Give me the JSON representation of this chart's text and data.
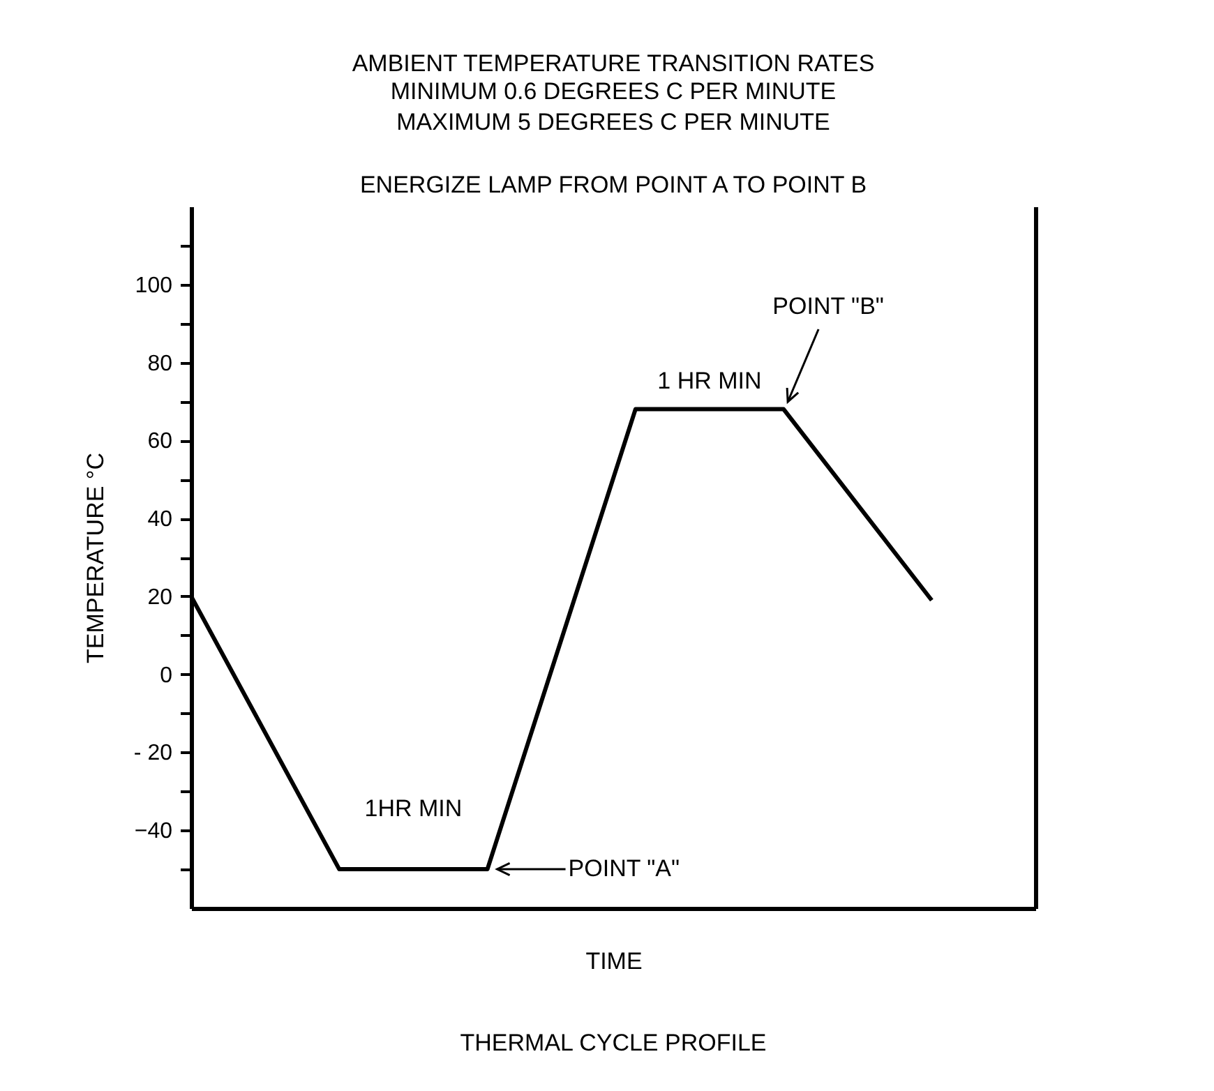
{
  "chart_data": {
    "type": "line",
    "title": "AMBIENT TEMPERATURE TRANSITION RATES",
    "subtitle": "MINIMUM 0.6 DEGREES C PER MINUTE\nMAXIMUM 5 DEGREES C PER MINUTE",
    "xlabel": "TIME",
    "ylabel": "TEMPERATURE °C",
    "categories": [
      null,
      null,
      null,
      null,
      null,
      null
    ],
    "series": [
      {
        "color": "#000000",
        "values": [
          20,
          -50,
          -50,
          68,
          68,
          19
        ]
      }
    ],
    "ylim": [
      -60,
      120
    ],
    "yticks": [
      {
        "value": -50,
        "label": null
      },
      -40,
      {
        "value": -30,
        "label": null
      },
      {
        "value": -20,
        "label": "- 20"
      },
      {
        "value": -10,
        "label": null
      },
      0,
      {
        "value": 10,
        "label": null
      },
      20,
      {
        "value": 30,
        "label": null
      },
      40,
      {
        "value": 50,
        "label": null
      },
      60,
      {
        "value": 70,
        "label": null
      },
      80,
      {
        "value": 90,
        "label": null
      },
      100,
      {
        "value": 110,
        "label": null
      }
    ],
    "tick_labels": "y",
    "annotations": [
      {
        "text": "1HR MIN",
        "y": -50
      },
      "POINT \"A\"",
      {
        "text": "1 HR MIN",
        "y": 68
      },
      "POINT \"B\"",
      "ENERGIZE LAMP FROM POINT A TO POINT B",
      "THERMAL CYCLE PROFILE"
    ]
  }
}
